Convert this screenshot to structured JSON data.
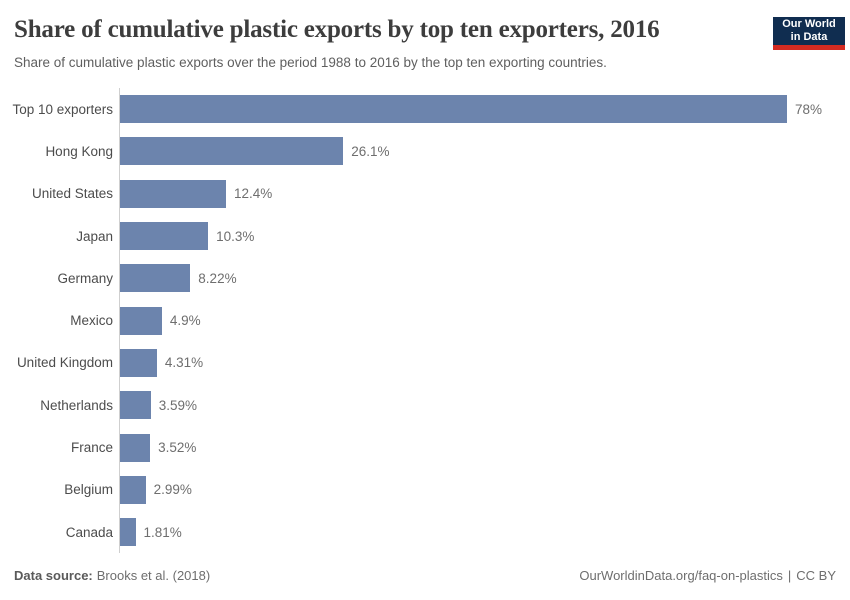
{
  "header": {
    "title": "Share of cumulative plastic exports by top ten exporters, 2016",
    "subtitle": "Share of cumulative plastic exports over the period 1988 to 2016 by the top ten exporting countries.",
    "logo": {
      "line1": "Our World",
      "line2": "in Data",
      "bg_color": "#102d50",
      "accent_color": "#d42b21"
    }
  },
  "chart_data": {
    "type": "bar",
    "orientation": "horizontal",
    "title": "Share of cumulative plastic exports by top ten exporters, 2016",
    "xlabel": "",
    "ylabel": "",
    "xlim": [
      0,
      78
    ],
    "grid": false,
    "legend": false,
    "bar_color": "#6c84ad",
    "axis_line_color": "#cfcfcf",
    "categories": [
      "Top 10 exporters",
      "Hong Kong",
      "United States",
      "Japan",
      "Germany",
      "Mexico",
      "United Kingdom",
      "Netherlands",
      "France",
      "Belgium",
      "Canada"
    ],
    "values": [
      78,
      26.1,
      12.4,
      10.3,
      8.22,
      4.9,
      4.31,
      3.59,
      3.52,
      2.99,
      1.81
    ],
    "value_labels": [
      "78%",
      "26.1%",
      "12.4%",
      "10.3%",
      "8.22%",
      "4.9%",
      "4.31%",
      "3.59%",
      "3.52%",
      "2.99%",
      "1.81%"
    ]
  },
  "footer": {
    "source_label": "Data source:",
    "source_value": "Brooks et al. (2018)",
    "link": "OurWorldinData.org/faq-on-plastics",
    "separator": "|",
    "license": "CC BY"
  }
}
